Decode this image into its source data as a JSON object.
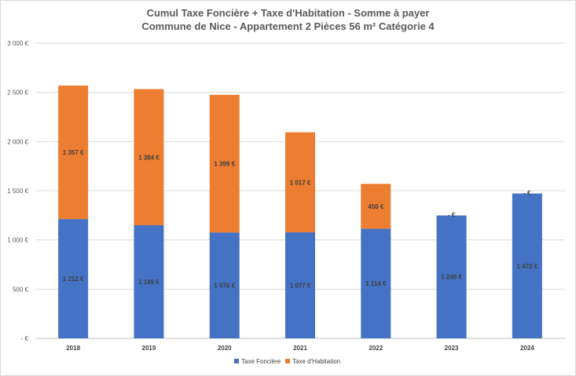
{
  "chart_data": {
    "type": "bar",
    "stacked": true,
    "title": "Cumul Taxe Foncière + Taxe d'Habitation - Somme à payer",
    "subtitle": "Commune de Nice - Appartement 2 Pièces 56 m² Catégorie 4",
    "categories": [
      "2018",
      "2019",
      "2020",
      "2021",
      "2022",
      "2023",
      "2024"
    ],
    "series": [
      {
        "name": "Taxe Foncière",
        "color": "#4472c4",
        "values": [
          1212,
          1149,
          1076,
          1077,
          1114,
          1249,
          1472
        ],
        "labels": [
          "1 212 €",
          "1 149 €",
          "1 076 €",
          "1 077 €",
          "1 114 €",
          "1 249 €",
          "1 472 €"
        ]
      },
      {
        "name": "Taxe d'Habitation",
        "color": "#ed7d31",
        "values": [
          1357,
          1384,
          1399,
          1017,
          456,
          0,
          0
        ],
        "labels": [
          "1 357 €",
          "1 384 €",
          "1 399 €",
          "1 017 €",
          "456 €",
          "- €",
          "- €"
        ]
      }
    ],
    "ylim": [
      0,
      3000
    ],
    "yticks": [
      0,
      500,
      1000,
      1500,
      2000,
      2500,
      3000
    ],
    "ytick_labels": [
      "- €",
      "500 €",
      "1 000 €",
      "1 500 €",
      "2 000 €",
      "2 500 €",
      "3 000 €"
    ],
    "grid": true,
    "legend": "bottom"
  }
}
